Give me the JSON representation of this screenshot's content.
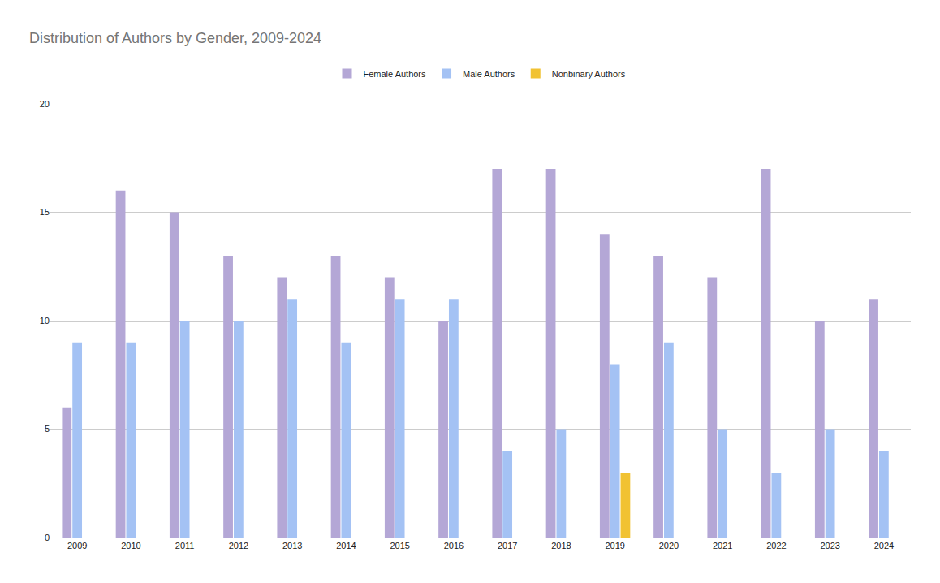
{
  "chart_data": {
    "type": "bar",
    "title": "Distribution of Authors by Gender, 2009-2024",
    "categories": [
      "2009",
      "2010",
      "2011",
      "2012",
      "2013",
      "2014",
      "2015",
      "2016",
      "2017",
      "2018",
      "2019",
      "2020",
      "2021",
      "2022",
      "2023",
      "2024"
    ],
    "series": [
      {
        "name": "Female Authors",
        "color": "#b4a7d6",
        "values": [
          6,
          16,
          15,
          13,
          12,
          13,
          12,
          10,
          17,
          17,
          14,
          13,
          12,
          17,
          10,
          11
        ]
      },
      {
        "name": "Male Authors",
        "color": "#a4c2f4",
        "values": [
          9,
          9,
          10,
          10,
          11,
          9,
          11,
          11,
          4,
          5,
          8,
          9,
          5,
          3,
          5,
          4
        ]
      },
      {
        "name": "Nonbinary Authors",
        "color": "#f1c232",
        "values": [
          null,
          null,
          null,
          null,
          null,
          null,
          null,
          null,
          null,
          null,
          3,
          null,
          null,
          null,
          null,
          null
        ]
      }
    ],
    "ylim": [
      0,
      20
    ],
    "yticks": [
      0,
      5,
      10,
      15,
      20
    ],
    "grid": true,
    "legend": "top"
  }
}
